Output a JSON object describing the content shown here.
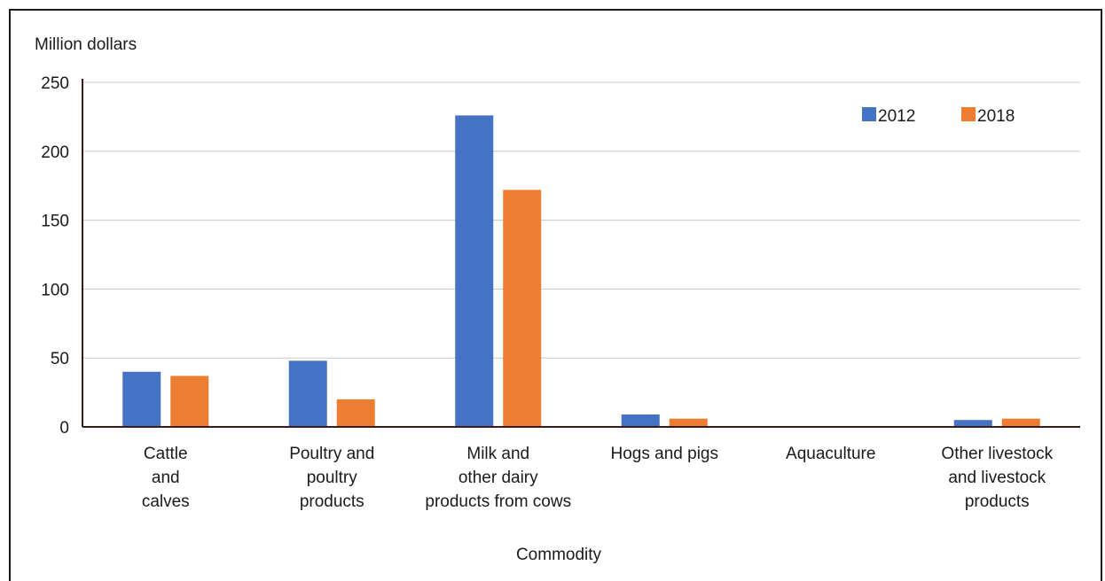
{
  "chart_data": {
    "type": "bar",
    "title": "",
    "ylabel": "Million dollars",
    "xlabel": "Commodity",
    "ylim": [
      0,
      250
    ],
    "yticks": [
      0,
      50,
      100,
      150,
      200,
      250
    ],
    "grid": true,
    "legend_position": "top-right",
    "categories": [
      "Cattle and calves",
      "Poultry and poultry products",
      "Milk and other dairy products from cows",
      "Hogs and pigs",
      "Aquaculture",
      "Other livestock and livestock products"
    ],
    "category_label_lines": [
      [
        "Cattle",
        "and",
        "calves"
      ],
      [
        "Poultry and",
        "poultry",
        "products"
      ],
      [
        "Milk and",
        "other dairy",
        "products from cows"
      ],
      [
        "Hogs and pigs"
      ],
      [
        "Aquaculture"
      ],
      [
        "Other livestock",
        "and livestock",
        "products"
      ]
    ],
    "series": [
      {
        "name": "2012",
        "color": "#4472c4",
        "values": [
          40,
          48,
          226,
          9,
          0,
          5
        ]
      },
      {
        "name": "2018",
        "color": "#ed7d31",
        "values": [
          37,
          20,
          172,
          6,
          0,
          6
        ]
      }
    ]
  }
}
